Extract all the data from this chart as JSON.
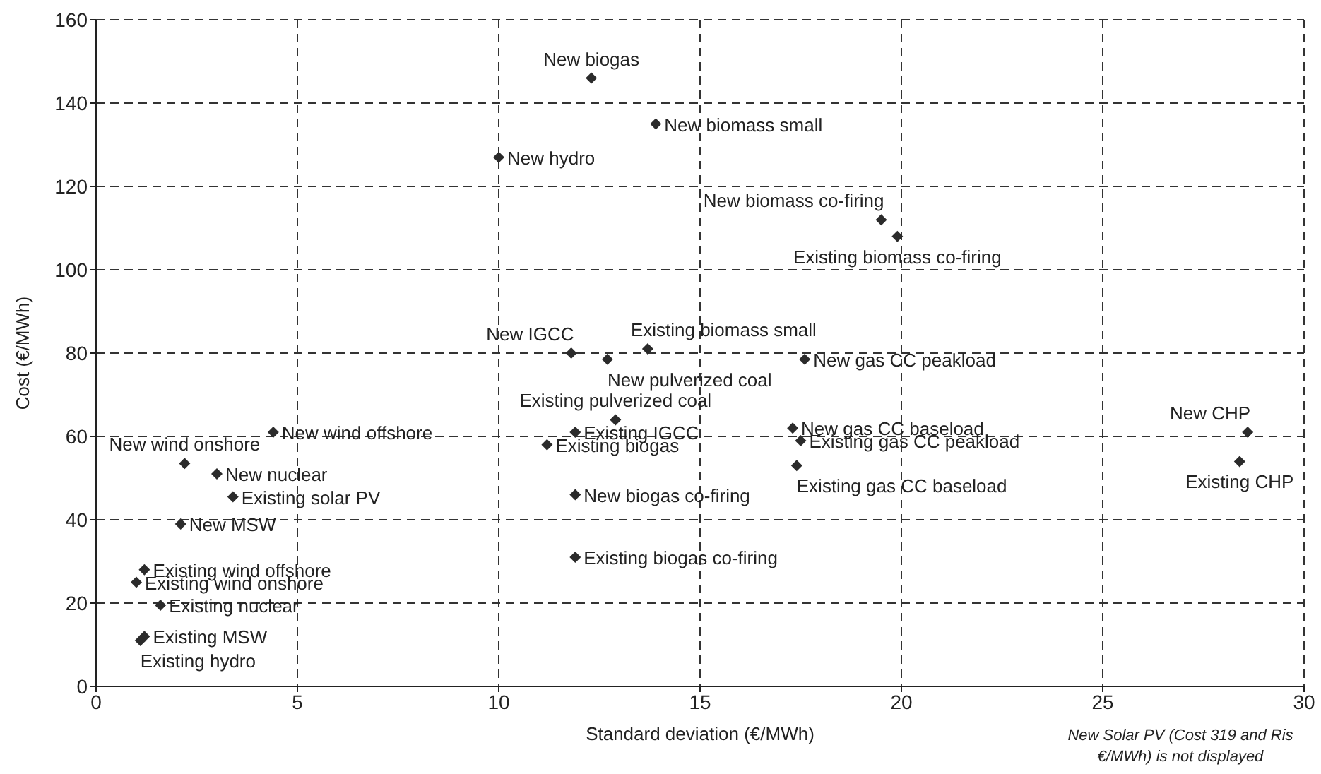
{
  "chart_data": {
    "type": "scatter",
    "xlabel": "Standard deviation (€/MWh)",
    "ylabel": "Cost (€/MWh)",
    "xlim": [
      0,
      30
    ],
    "xticks": [
      0,
      5,
      10,
      15,
      20,
      25,
      30
    ],
    "ylim": [
      0,
      160
    ],
    "yticks": [
      0,
      20,
      40,
      60,
      80,
      100,
      120,
      140,
      160
    ],
    "grid": true,
    "marker": "diamond",
    "series": [
      {
        "color": "#2b2b2b",
        "x": [
          12.3,
          13.9,
          10.0,
          19.5,
          19.9,
          11.8,
          13.7,
          12.7,
          17.6,
          17.3,
          17.5,
          17.4,
          12.9,
          11.9,
          11.2,
          11.9,
          11.9,
          4.4,
          2.2,
          3.0,
          3.4,
          2.1,
          1.2,
          1.0,
          1.6,
          1.2,
          1.1,
          28.6,
          28.4
        ],
        "values": [
          146,
          135,
          127,
          112,
          108,
          80,
          81,
          78.5,
          78.5,
          62,
          59,
          53,
          64,
          61,
          58,
          46,
          31,
          61,
          53.5,
          51,
          45.5,
          39,
          28,
          25,
          19.5,
          12,
          11,
          61,
          54
        ]
      }
    ],
    "annotations": [
      {
        "text": "New biogas",
        "x": 12.3,
        "y": 146
      },
      {
        "text": "New biomass small",
        "x": 13.9,
        "y": 135
      },
      {
        "text": "New hydro",
        "x": 10.0,
        "y": 127
      },
      {
        "text": "New biomass co-firing",
        "x": 19.5,
        "y": 112
      },
      {
        "text": "Existing biomass co-firing",
        "x": 19.9,
        "y": 108
      },
      {
        "text": "New IGCC",
        "x": 11.8,
        "y": 80
      },
      {
        "text": "Existing biomass small",
        "x": 13.7,
        "y": 81
      },
      {
        "text": "New pulverized coal",
        "x": 12.7,
        "y": 78.5
      },
      {
        "text": "New gas CC peakload",
        "x": 17.6,
        "y": 78.5
      },
      {
        "text": "New gas CC baseload",
        "x": 17.3,
        "y": 62
      },
      {
        "text": "Existing gas CC peakload",
        "x": 17.5,
        "y": 59
      },
      {
        "text": "Existing gas CC baseload",
        "x": 17.4,
        "y": 53
      },
      {
        "text": "Existing pulverized coal",
        "x": 12.9,
        "y": 64
      },
      {
        "text": "Existing IGCC",
        "x": 11.9,
        "y": 61
      },
      {
        "text": "Existing biogas",
        "x": 11.2,
        "y": 58
      },
      {
        "text": "New biogas co-firing",
        "x": 11.9,
        "y": 46
      },
      {
        "text": "Existing biogas co-firing",
        "x": 11.9,
        "y": 31
      },
      {
        "text": "New wind offshore",
        "x": 4.4,
        "y": 61
      },
      {
        "text": "New wind onshore",
        "x": 2.2,
        "y": 53.5
      },
      {
        "text": "New nuclear",
        "x": 3.0,
        "y": 51
      },
      {
        "text": "Existing solar PV",
        "x": 3.4,
        "y": 45.5
      },
      {
        "text": "New MSW",
        "x": 2.1,
        "y": 39
      },
      {
        "text": "Existing wind offshore",
        "x": 1.2,
        "y": 28
      },
      {
        "text": "Existing wind onshore",
        "x": 1.0,
        "y": 25
      },
      {
        "text": "Existing nuclear",
        "x": 1.6,
        "y": 19.5
      },
      {
        "text": "Existing MSW",
        "x": 1.2,
        "y": 12
      },
      {
        "text": "Existing hydro",
        "x": 1.1,
        "y": 11
      },
      {
        "text": "New CHP",
        "x": 28.6,
        "y": 61
      },
      {
        "text": "Existing CHP",
        "x": 28.4,
        "y": 54
      },
      "New Solar PV (Cost 319 and Ris €/MWh) is not displayed"
    ]
  }
}
